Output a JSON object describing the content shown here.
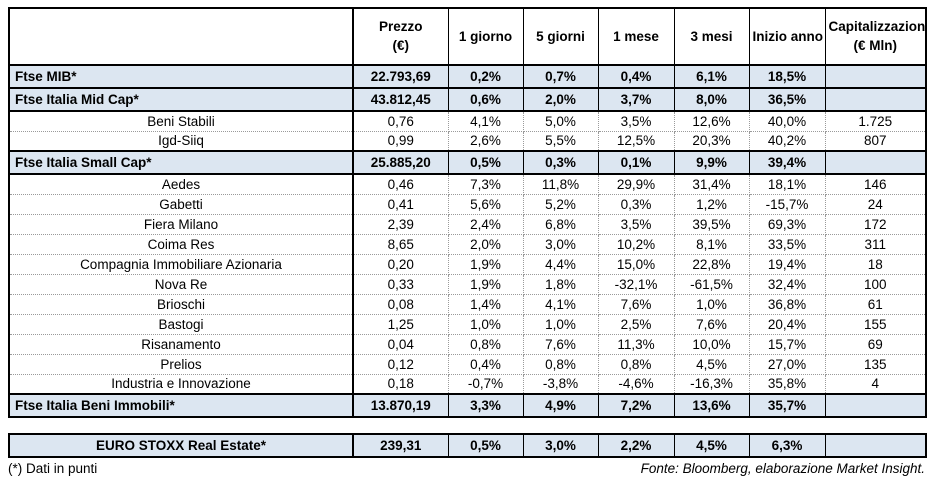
{
  "table": {
    "columns": [
      {
        "line1": "",
        "line2": ""
      },
      {
        "line1": "Prezzo",
        "line2": "(€)"
      },
      {
        "line1": "1 giorno",
        "line2": ""
      },
      {
        "line1": "5 giorni",
        "line2": ""
      },
      {
        "line1": "1 mese",
        "line2": ""
      },
      {
        "line1": "3 mesi",
        "line2": ""
      },
      {
        "line1": "Inizio anno",
        "line2": ""
      },
      {
        "line1": "Capitalizzazione",
        "line2": "(€ Mln)"
      }
    ],
    "rows": [
      {
        "type": "index",
        "name": "Ftse MIB*",
        "values": [
          "22.793,69",
          "0,2%",
          "0,7%",
          "0,4%",
          "6,1%",
          "18,5%",
          ""
        ]
      },
      {
        "type": "index",
        "name": "Ftse Italia Mid Cap*",
        "values": [
          "43.812,45",
          "0,6%",
          "2,0%",
          "3,7%",
          "8,0%",
          "36,5%",
          ""
        ]
      },
      {
        "type": "company",
        "name": "Beni Stabili",
        "values": [
          "0,76",
          "4,1%",
          "5,0%",
          "3,5%",
          "12,6%",
          "40,0%",
          "1.725"
        ]
      },
      {
        "type": "company",
        "name": "Igd-Siiq",
        "values": [
          "0,99",
          "2,6%",
          "5,5%",
          "12,5%",
          "20,3%",
          "40,2%",
          "807"
        ]
      },
      {
        "type": "index",
        "name": "Ftse Italia Small Cap*",
        "values": [
          "25.885,20",
          "0,5%",
          "0,3%",
          "0,1%",
          "9,9%",
          "39,4%",
          ""
        ]
      },
      {
        "type": "company",
        "name": "Aedes",
        "values": [
          "0,46",
          "7,3%",
          "11,8%",
          "29,9%",
          "31,4%",
          "18,1%",
          "146"
        ]
      },
      {
        "type": "company",
        "name": "Gabetti",
        "values": [
          "0,41",
          "5,6%",
          "5,2%",
          "0,3%",
          "1,2%",
          "-15,7%",
          "24"
        ]
      },
      {
        "type": "company",
        "name": "Fiera Milano",
        "values": [
          "2,39",
          "2,4%",
          "6,8%",
          "3,5%",
          "39,5%",
          "69,3%",
          "172"
        ]
      },
      {
        "type": "company",
        "name": "Coima Res",
        "values": [
          "8,65",
          "2,0%",
          "3,0%",
          "10,2%",
          "8,1%",
          "33,5%",
          "311"
        ]
      },
      {
        "type": "company",
        "name": "Compagnia Immobiliare Azionaria",
        "values": [
          "0,20",
          "1,9%",
          "4,4%",
          "15,0%",
          "22,8%",
          "19,4%",
          "18"
        ]
      },
      {
        "type": "company",
        "name": "Nova Re",
        "values": [
          "0,33",
          "1,9%",
          "1,8%",
          "-32,1%",
          "-61,5%",
          "32,4%",
          "100"
        ]
      },
      {
        "type": "company",
        "name": "Brioschi",
        "values": [
          "0,08",
          "1,4%",
          "4,1%",
          "7,6%",
          "1,0%",
          "36,8%",
          "61"
        ]
      },
      {
        "type": "company",
        "name": "Bastogi",
        "values": [
          "1,25",
          "1,0%",
          "1,0%",
          "2,5%",
          "7,6%",
          "20,4%",
          "155"
        ]
      },
      {
        "type": "company",
        "name": "Risanamento",
        "values": [
          "0,04",
          "0,8%",
          "7,6%",
          "11,3%",
          "10,0%",
          "15,7%",
          "69"
        ]
      },
      {
        "type": "company",
        "name": "Prelios",
        "values": [
          "0,12",
          "0,4%",
          "0,8%",
          "0,8%",
          "4,5%",
          "27,0%",
          "135"
        ]
      },
      {
        "type": "company",
        "name": "Industria e Innovazione",
        "values": [
          "0,18",
          "-0,7%",
          "-3,8%",
          "-4,6%",
          "-16,3%",
          "35,8%",
          "4"
        ]
      },
      {
        "type": "index",
        "name": "Ftse Italia Beni Immobili*",
        "values": [
          "13.870,19",
          "3,3%",
          "4,9%",
          "7,2%",
          "13,6%",
          "35,7%",
          ""
        ]
      }
    ]
  },
  "strip": {
    "name": "EURO STOXX Real Estate*",
    "values": [
      "239,31",
      "0,5%",
      "3,0%",
      "2,2%",
      "4,5%",
      "6,3%",
      ""
    ]
  },
  "footer": {
    "note": "(*) Dati in punti",
    "source": "Fonte: Bloomberg, elaborazione Market Insight."
  },
  "colors": {
    "highlight_row_bg": "#dce6f1",
    "border_solid": "#000000",
    "border_dotted": "#9a9a9a",
    "text": "#000000",
    "background": "#ffffff"
  }
}
